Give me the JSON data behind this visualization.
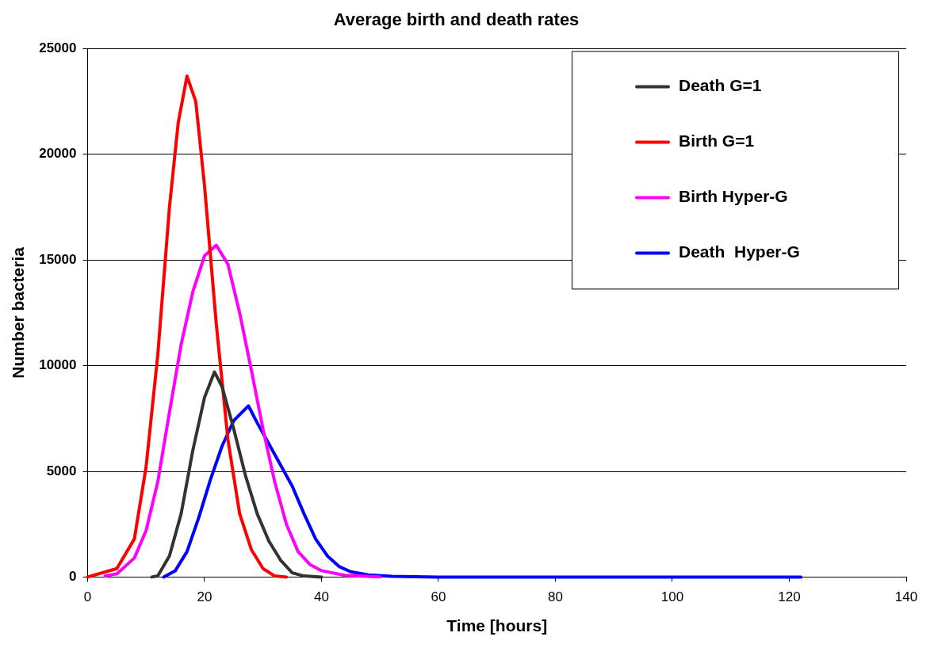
{
  "chart_data": {
    "type": "line",
    "title": "Average birth and death rates",
    "xlabel": "Time [hours]",
    "ylabel": "Number bacteria",
    "xlim": [
      0,
      140
    ],
    "xticks": [
      0,
      20,
      40,
      60,
      80,
      100,
      120,
      140
    ],
    "ylim": [
      0,
      25000
    ],
    "yticks": [
      0,
      5000,
      10000,
      15000,
      20000,
      25000
    ],
    "grid": "y",
    "legend": "top right",
    "marker": "none",
    "line_style": "solid",
    "series": [
      {
        "name": "Death G=1",
        "color": "#333333",
        "x": [
          11,
          12,
          14,
          16,
          18,
          20,
          21.7,
          23,
          25,
          27,
          29,
          31,
          33,
          35,
          37,
          40
        ],
        "values": [
          0,
          50,
          1000,
          3000,
          6000,
          8500,
          9700,
          9000,
          7000,
          4800,
          3000,
          1700,
          800,
          200,
          50,
          0
        ]
      },
      {
        "name": "Birth G=1",
        "color": "#ff0000",
        "x": [
          0,
          5,
          8,
          10,
          12,
          14,
          15.5,
          17,
          18.5,
          20,
          22,
          24,
          26,
          28,
          30,
          32,
          34
        ],
        "values": [
          0,
          400,
          1800,
          5200,
          10500,
          17500,
          21500,
          23700,
          22500,
          18500,
          12000,
          6500,
          3000,
          1300,
          400,
          50,
          0
        ]
      },
      {
        "name": "Birth Hyper-G",
        "color": "#ff00ff",
        "x": [
          3,
          5,
          8,
          10,
          12,
          14,
          16,
          18,
          20,
          22,
          24,
          26,
          28,
          30,
          32,
          34,
          36,
          38,
          40,
          44,
          50
        ],
        "values": [
          50,
          150,
          900,
          2200,
          4500,
          7800,
          11000,
          13500,
          15200,
          15700,
          14800,
          12500,
          9800,
          7000,
          4500,
          2500,
          1200,
          600,
          300,
          80,
          10
        ]
      },
      {
        "name": "Death  Hyper-G",
        "color": "#0000ff",
        "x": [
          13,
          15,
          17,
          19,
          21,
          23,
          25,
          27.5,
          29,
          31,
          33,
          35,
          37,
          39,
          41,
          43,
          45,
          48,
          52,
          60,
          80,
          100,
          122
        ],
        "values": [
          0,
          300,
          1200,
          2800,
          4600,
          6200,
          7400,
          8100,
          7300,
          6300,
          5300,
          4300,
          3000,
          1800,
          1000,
          500,
          250,
          100,
          30,
          0,
          0,
          0,
          0
        ]
      }
    ]
  }
}
